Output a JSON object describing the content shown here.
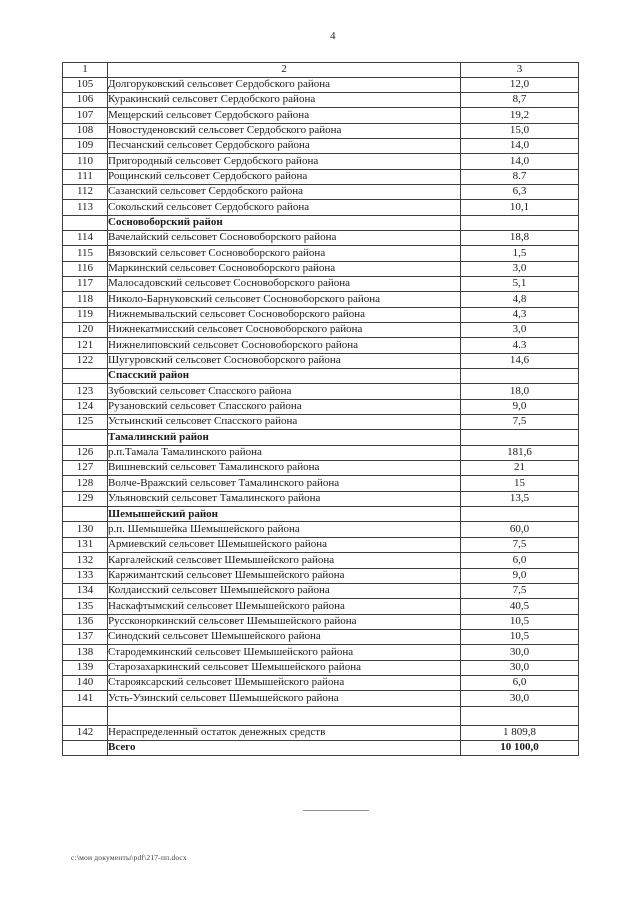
{
  "page": {
    "number": "4",
    "footer_path": "с:\\мои документы\\pdf\\217-пп.docx"
  },
  "table": {
    "headers": [
      "1",
      "2",
      "3"
    ],
    "rows": [
      {
        "type": "data",
        "num": "105",
        "name": "Долгоруковский сельсовет Сердобского района",
        "value": "12,0"
      },
      {
        "type": "data",
        "num": "106",
        "name": "Куракинский сельсовет Сердобского района",
        "value": "8,7"
      },
      {
        "type": "data",
        "num": "107",
        "name": "Мещерский сельсовет Сердобского района",
        "value": "19,2"
      },
      {
        "type": "data",
        "num": "108",
        "name": "Новостуденовский сельсовет Сердобского района",
        "value": "15,0"
      },
      {
        "type": "data",
        "num": "109",
        "name": "Песчанский сельсовет Сердобского района",
        "value": "14,0"
      },
      {
        "type": "data",
        "num": "110",
        "name": "Пригородный сельсовет Сердобского района",
        "value": "14,0"
      },
      {
        "type": "data",
        "num": "111",
        "name": "Рощинский сельсовет Сердобского района",
        "value": "8.7"
      },
      {
        "type": "data",
        "num": "112",
        "name": "Сазанский сельсовет Сердобского района",
        "value": "6,3"
      },
      {
        "type": "data",
        "num": "113",
        "name": "Сокольский сельсовет Сердобского района",
        "value": "10,1"
      },
      {
        "type": "section",
        "num": "",
        "name": "Сосновоборский район",
        "value": ""
      },
      {
        "type": "data",
        "num": "114",
        "name": "Вачелайский сельсовет Сосновоборского района",
        "value": "18,8"
      },
      {
        "type": "data",
        "num": "115",
        "name": "Вязовский сельсовет Сосновоборского района",
        "value": "1,5"
      },
      {
        "type": "data",
        "num": "116",
        "name": "Маркинский сельсовет Сосновоборского района",
        "value": "3,0"
      },
      {
        "type": "data",
        "num": "117",
        "name": "Малосадовский сельсовет Сосновоборского района",
        "value": "5,1"
      },
      {
        "type": "data",
        "num": "118",
        "name": "Николо-Барнуковский сельсовет Сосновоборского района",
        "value": "4,8"
      },
      {
        "type": "data",
        "num": "119",
        "name": "Нижнемывальский сельсовет Сосновоборского района",
        "value": "4,3"
      },
      {
        "type": "data",
        "num": "120",
        "name": "Нижнекатмисский сельсовет Сосновоборского района",
        "value": "3,0"
      },
      {
        "type": "data",
        "num": "121",
        "name": "Нижнелиповский сельсовет Сосновоборского района",
        "value": "4.3"
      },
      {
        "type": "data",
        "num": "122",
        "name": "Шугуровский сельсовет Сосновоборского района",
        "value": "14,6"
      },
      {
        "type": "section",
        "num": "",
        "name": "Спасский район",
        "value": ""
      },
      {
        "type": "data",
        "num": "123",
        "name": "Зубовский сельсовет Спасского района",
        "value": "18,0"
      },
      {
        "type": "data",
        "num": "124",
        "name": "Рузановский сельсовет Спасского района",
        "value": "9,0"
      },
      {
        "type": "data",
        "num": "125",
        "name": "Устьинский сельсовет Спасского района",
        "value": "7,5"
      },
      {
        "type": "section",
        "num": "",
        "name": "Тамалинский район",
        "value": ""
      },
      {
        "type": "data",
        "num": "126",
        "name": "р.п.Тамала Тамалинского района",
        "value": "181,6"
      },
      {
        "type": "data",
        "num": "127",
        "name": "Вишневский сельсовет Тамалинского района",
        "value": "21"
      },
      {
        "type": "data",
        "num": "128",
        "name": "Волче-Вражский сельсовет Тамалинского района",
        "value": "15"
      },
      {
        "type": "data",
        "num": "129",
        "name": "Ульяновский сельсовет Тамалинского района",
        "value": "13,5"
      },
      {
        "type": "section",
        "num": "",
        "name": "Шемышейский район",
        "value": ""
      },
      {
        "type": "data",
        "num": "130",
        "name": "р.п. Шемышейка Шемышейского района",
        "value": "60,0"
      },
      {
        "type": "data",
        "num": "131",
        "name": "Армиевский сельсовет Шемышейского района",
        "value": "7,5"
      },
      {
        "type": "data",
        "num": "132",
        "name": "Каргалейский сельсовет Шемышейского района",
        "value": "6,0"
      },
      {
        "type": "data",
        "num": "133",
        "name": "Каржимантский сельсовет Шемышейского района",
        "value": "9,0"
      },
      {
        "type": "data",
        "num": "134",
        "name": "Колдаисский сельсовет Шемышейского района",
        "value": "7,5"
      },
      {
        "type": "data",
        "num": "135",
        "name": "Наскафтымский сельсовет Шемышейского района",
        "value": "40,5"
      },
      {
        "type": "data",
        "num": "136",
        "name": "Руссконоркинский сельсовет Шемышейского района",
        "value": "10,5"
      },
      {
        "type": "data",
        "num": "137",
        "name": "Синодский сельсовет Шемышейского района",
        "value": "10,5"
      },
      {
        "type": "data",
        "num": "138",
        "name": "Стародемкинский сельсовет Шемышейского района",
        "value": "30,0"
      },
      {
        "type": "data",
        "num": "139",
        "name": "Старозахаркинский сельсовет Шемышейского района",
        "value": "30,0"
      },
      {
        "type": "data",
        "num": "140",
        "name": "Старояксарский сельсовет Шемышейского района",
        "value": "6,0"
      },
      {
        "type": "data",
        "num": "141",
        "name": "Усть-Узинский сельсовет Шемышейского района",
        "value": "30,0"
      },
      {
        "type": "empty",
        "num": "",
        "name": "",
        "value": ""
      },
      {
        "type": "data",
        "num": "142",
        "name": "Нераспределенный остаток денежных средств",
        "value": "1 809,8"
      },
      {
        "type": "total",
        "num": "",
        "name": "Всего",
        "value": "10 100,0"
      }
    ]
  }
}
